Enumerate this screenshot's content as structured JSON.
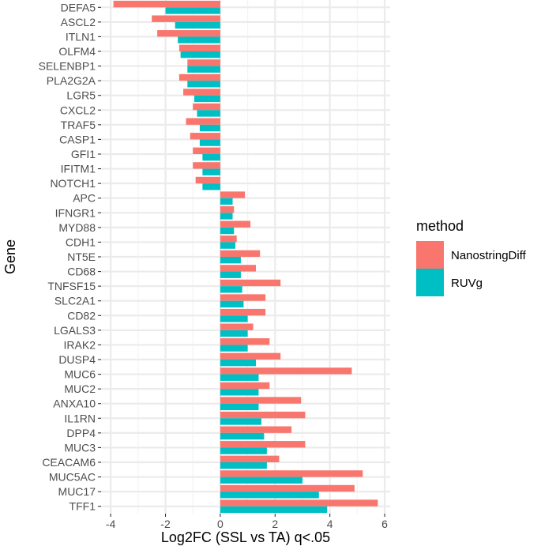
{
  "chart_data": {
    "type": "bar",
    "orientation": "horizontal",
    "xlabel": "Log2FC (SSL vs TA) q<.05",
    "ylabel": "Gene",
    "xlim": [
      -4.35,
      6.2
    ],
    "xticks": [
      -4,
      -2,
      0,
      2,
      4,
      6
    ],
    "xtick_labels": [
      "-4",
      "-2",
      "0",
      "2",
      "4",
      "6"
    ],
    "grid": true,
    "legend": {
      "title": "method",
      "position": "right",
      "entries": [
        "NanostringDiff",
        "RUVg"
      ]
    },
    "colors": {
      "NanostringDiff": "#F8766D",
      "RUVg": "#00BFC4",
      "panel": "#ffffff",
      "grid_major": "#ebebeb",
      "grid_minor": "#f4f4f4",
      "tick_text": "#4d4d4d"
    },
    "categories": [
      "DEFA5",
      "ASCL2",
      "ITLN1",
      "OLFM4",
      "SELENBP1",
      "PLA2G2A",
      "LGR5",
      "CXCL2",
      "TRAF5",
      "CASP1",
      "GFI1",
      "IFITM1",
      "NOTCH1",
      "APC",
      "IFNGR1",
      "MYD88",
      "CDH1",
      "NT5E",
      "CD68",
      "TNFSF15",
      "SLC2A1",
      "CD82",
      "LGALS3",
      "IRAK2",
      "DUSP4",
      "MUC6",
      "MUC2",
      "ANXA10",
      "IL1RN",
      "DPP4",
      "MUC3",
      "CEACAM6",
      "MUC5AC",
      "MUC17",
      "TFF1"
    ],
    "series": [
      {
        "name": "NanostringDiff",
        "values": [
          -3.9,
          -2.5,
          -2.3,
          -1.5,
          -1.2,
          -1.5,
          -1.35,
          -1.0,
          -1.25,
          -1.1,
          -1.0,
          -1.0,
          -0.9,
          0.9,
          0.5,
          1.1,
          0.6,
          1.45,
          1.3,
          2.2,
          1.65,
          1.65,
          1.2,
          1.8,
          2.2,
          4.8,
          1.8,
          2.95,
          3.1,
          2.6,
          3.1,
          2.15,
          5.2,
          4.9,
          5.75
        ]
      },
      {
        "name": "RUVg",
        "values": [
          -2.0,
          -1.65,
          -1.55,
          -1.45,
          -1.2,
          -1.2,
          -0.95,
          -0.85,
          -0.75,
          -0.75,
          -0.65,
          -0.65,
          -0.65,
          0.45,
          0.45,
          0.5,
          0.55,
          0.75,
          0.75,
          0.8,
          0.85,
          1.0,
          1.0,
          1.0,
          1.3,
          1.4,
          1.4,
          1.4,
          1.5,
          1.6,
          1.7,
          1.7,
          3.0,
          3.6,
          3.9
        ]
      }
    ]
  }
}
